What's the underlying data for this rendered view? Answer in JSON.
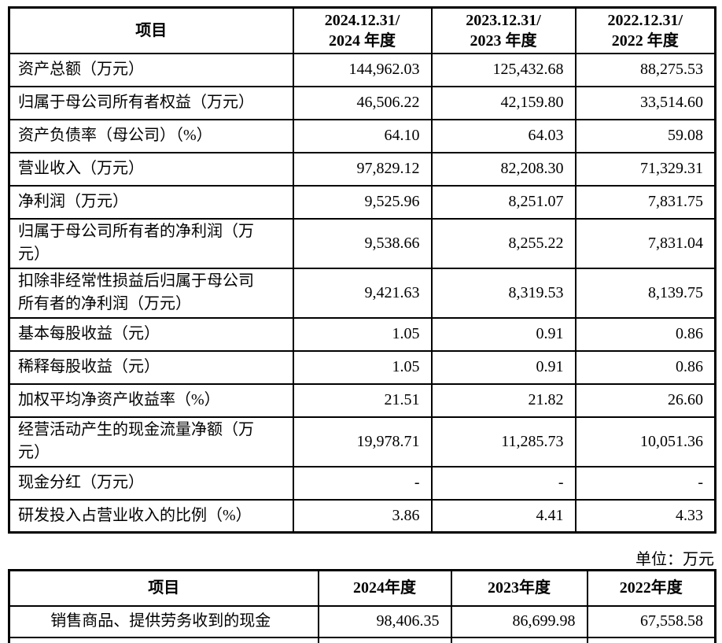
{
  "unit_label": "单位：万元",
  "table1": {
    "item_header": "项目",
    "year_headers": [
      "2024.12.31/\n2024 年度",
      "2023.12.31/\n2023 年度",
      "2022.12.31/\n2022 年度"
    ],
    "rows": [
      {
        "label": "资产总额（万元）",
        "values": [
          "144,962.03",
          "125,432.68",
          "88,275.53"
        ]
      },
      {
        "label": "归属于母公司所有者权益（万元）",
        "values": [
          "46,506.22",
          "42,159.80",
          "33,514.60"
        ]
      },
      {
        "label": "资产负债率（母公司）（%）",
        "values": [
          "64.10",
          "64.03",
          "59.08"
        ]
      },
      {
        "label": "营业收入（万元）",
        "values": [
          "97,829.12",
          "82,208.30",
          "71,329.31"
        ]
      },
      {
        "label": "净利润（万元）",
        "values": [
          "9,525.96",
          "8,251.07",
          "7,831.75"
        ]
      },
      {
        "label": "归属于母公司所有者的净利润（万\n元）",
        "values": [
          "9,538.66",
          "8,255.22",
          "7,831.04"
        ]
      },
      {
        "label": "扣除非经常性损益后归属于母公司\n所有者的净利润（万元）",
        "values": [
          "9,421.63",
          "8,319.53",
          "8,139.75"
        ]
      },
      {
        "label": "基本每股收益（元）",
        "values": [
          "1.05",
          "0.91",
          "0.86"
        ]
      },
      {
        "label": "稀释每股收益（元）",
        "values": [
          "1.05",
          "0.91",
          "0.86"
        ]
      },
      {
        "label": "加权平均净资产收益率（%）",
        "values": [
          "21.51",
          "21.82",
          "26.60"
        ]
      },
      {
        "label": "经营活动产生的现金流量净额（万\n元）",
        "values": [
          "19,978.71",
          "11,285.73",
          "10,051.36"
        ]
      },
      {
        "label": "现金分红（万元）",
        "values": [
          "-",
          "-",
          "-"
        ]
      },
      {
        "label": "研发投入占营业收入的比例（%）",
        "values": [
          "3.86",
          "4.41",
          "4.33"
        ]
      }
    ]
  },
  "table2": {
    "item_header": "项目",
    "year_headers": [
      "2024年度",
      "2023年度",
      "2022年度"
    ],
    "rows": [
      {
        "label": "销售商品、提供劳务收到的现金",
        "values": [
          "98,406.35",
          "86,699.98",
          "67,558.58"
        ]
      }
    ]
  }
}
